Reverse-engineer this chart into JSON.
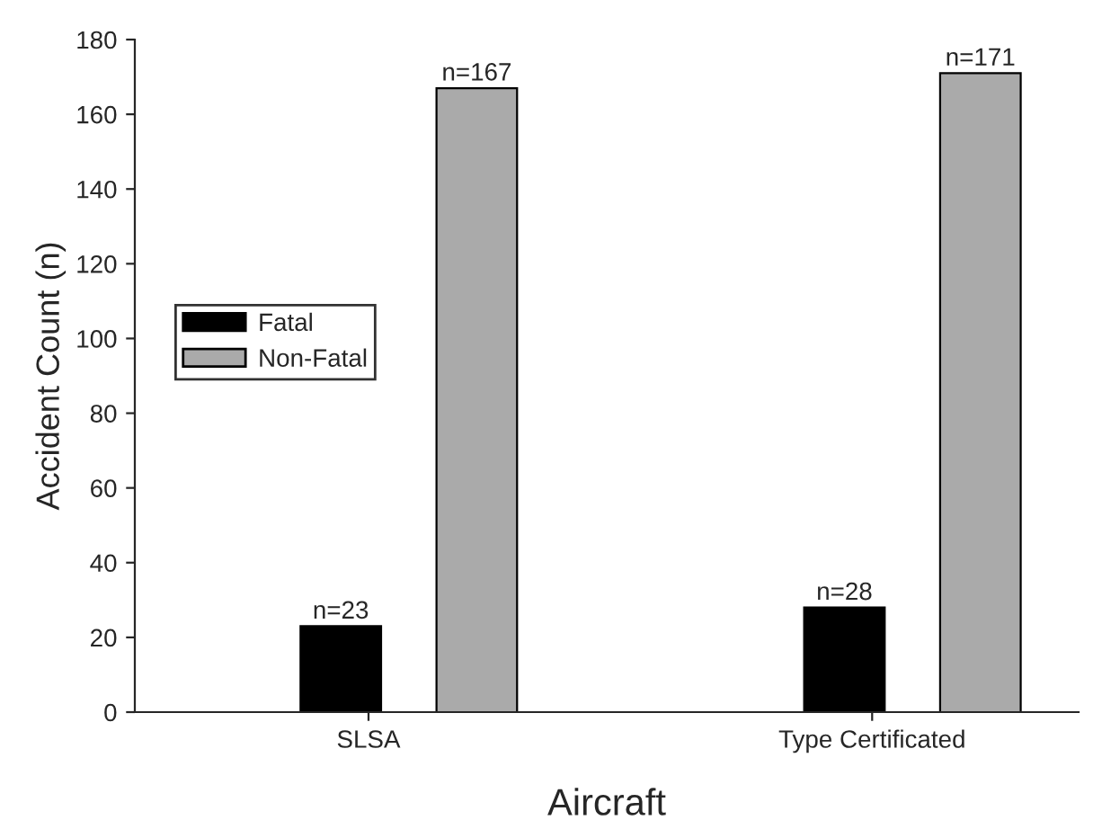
{
  "chart_data": {
    "type": "bar",
    "xlabel": "Aircraft",
    "ylabel": "Accident Count (n)",
    "categories": [
      "SLSA",
      "Type Certificated"
    ],
    "series": [
      {
        "name": "Fatal",
        "color": "#000000",
        "values": [
          23,
          28
        ],
        "value_labels": [
          "n=23",
          "n=28"
        ]
      },
      {
        "name": "Non-Fatal",
        "color": "#aaaaaa",
        "values": [
          167,
          171
        ],
        "value_labels": [
          "n=167",
          "n=171"
        ]
      }
    ],
    "ylim": [
      0,
      180
    ],
    "yticks": [
      0,
      20,
      40,
      60,
      80,
      100,
      120,
      140,
      160,
      180
    ],
    "grid": false,
    "legend": "center left"
  }
}
